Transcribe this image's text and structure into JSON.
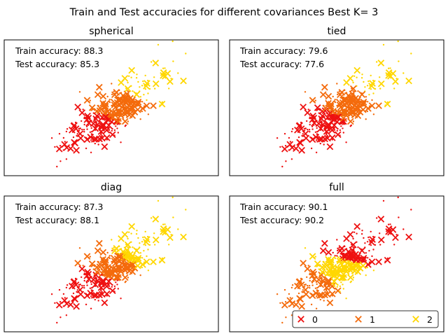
{
  "figure": {
    "suptitle": "Train and Test accuracies for different covariances Best K= 3"
  },
  "colors": {
    "class_0": "#ee1111",
    "class_1": "#f46b0c",
    "class_2": "#ffd700"
  },
  "chart_data": [
    {
      "type": "scatter",
      "title": "spherical",
      "train_label": "Train accuracy: 88.3",
      "test_label": "Test accuracy: 85.3",
      "xlim": [
        -4,
        4
      ],
      "ylim": [
        -4,
        4
      ],
      "ticks": "none",
      "means": [
        [
          -0.55,
          -1.25
        ],
        [
          0.15,
          0.05
        ],
        [
          0.9,
          1.05
        ]
      ]
    },
    {
      "type": "scatter",
      "title": "tied",
      "train_label": "Train accuracy: 79.6",
      "test_label": "Test accuracy: 77.6",
      "xlim": [
        -4,
        4
      ],
      "ylim": [
        -4,
        4
      ],
      "ticks": "none",
      "means": [
        [
          -0.5,
          -1.1
        ],
        [
          0.25,
          0.1
        ],
        [
          1.0,
          1.05
        ]
      ]
    },
    {
      "type": "scatter",
      "title": "diag",
      "train_label": "Train accuracy: 87.3",
      "test_label": "Test accuracy: 88.1",
      "xlim": [
        -4,
        4
      ],
      "ylim": [
        -4,
        4
      ],
      "ticks": "none",
      "means": [
        [
          -0.5,
          -1.2
        ],
        [
          -0.05,
          -0.2
        ],
        [
          0.55,
          0.5
        ]
      ]
    },
    {
      "type": "scatter",
      "title": "full",
      "train_label": "Train accuracy: 90.1",
      "test_label": "Test accuracy: 90.2",
      "xlim": [
        -4,
        4
      ],
      "ylim": [
        -4,
        4
      ],
      "ticks": "none",
      "means": [
        [
          0.6,
          0.4
        ],
        [
          -0.9,
          -1.3
        ],
        [
          0.2,
          -0.55
        ]
      ],
      "legend": {
        "placement": "lower-right",
        "entries": [
          "0",
          "1",
          "2"
        ]
      }
    }
  ]
}
